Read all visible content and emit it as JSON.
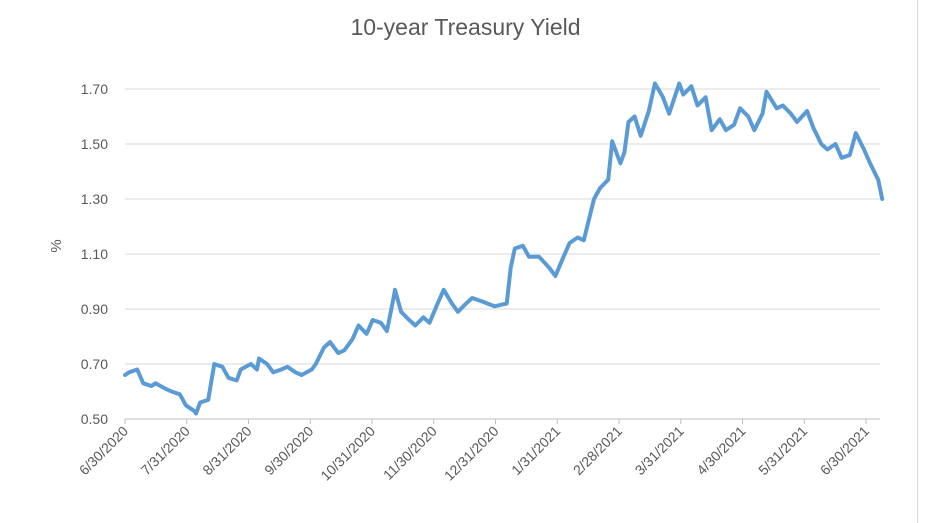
{
  "chart_data": {
    "type": "line",
    "title": "10-year Treasury Yield",
    "xlabel": "",
    "ylabel": "%",
    "ylim": [
      0.5,
      1.7
    ],
    "yticks": [
      "0.50",
      "0.70",
      "0.90",
      "1.10",
      "1.30",
      "1.50",
      "1.70"
    ],
    "xticks": [
      "6/30/2020",
      "7/31/2020",
      "8/31/2020",
      "9/30/2020",
      "10/31/2020",
      "11/30/2020",
      "12/31/2020",
      "1/31/2021",
      "2/28/2021",
      "3/31/2021",
      "4/30/2021",
      "5/31/2021",
      "6/30/2021"
    ],
    "grid": "horizontal",
    "legend": "none",
    "series_color": "#5b9bd5",
    "series": [
      {
        "x": [
          "2020-06-30",
          "2020-07-02",
          "2020-07-06",
          "2020-07-09",
          "2020-07-13",
          "2020-07-15",
          "2020-07-20",
          "2020-07-23",
          "2020-07-27",
          "2020-07-30",
          "2020-08-03",
          "2020-08-04",
          "2020-08-06",
          "2020-08-10",
          "2020-08-13",
          "2020-08-17",
          "2020-08-20",
          "2020-08-24",
          "2020-08-26",
          "2020-08-31",
          "2020-09-03",
          "2020-09-04",
          "2020-09-08",
          "2020-09-11",
          "2020-09-15",
          "2020-09-18",
          "2020-09-22",
          "2020-09-25",
          "2020-09-30",
          "2020-10-02",
          "2020-10-06",
          "2020-10-09",
          "2020-10-13",
          "2020-10-16",
          "2020-10-20",
          "2020-10-23",
          "2020-10-27",
          "2020-10-30",
          "2020-11-03",
          "2020-11-06",
          "2020-11-09",
          "2020-11-10",
          "2020-11-13",
          "2020-11-17",
          "2020-11-20",
          "2020-11-24",
          "2020-11-27",
          "2020-12-01",
          "2020-12-04",
          "2020-12-08",
          "2020-12-11",
          "2020-12-15",
          "2020-12-18",
          "2020-12-22",
          "2020-12-29",
          "2021-01-04",
          "2021-01-06",
          "2021-01-08",
          "2021-01-12",
          "2021-01-15",
          "2021-01-20",
          "2021-01-25",
          "2021-01-28",
          "2021-02-01",
          "2021-02-04",
          "2021-02-08",
          "2021-02-11",
          "2021-02-16",
          "2021-02-19",
          "2021-02-23",
          "2021-02-25",
          "2021-03-01",
          "2021-03-03",
          "2021-03-05",
          "2021-03-08",
          "2021-03-11",
          "2021-03-15",
          "2021-03-18",
          "2021-03-22",
          "2021-03-25",
          "2021-03-30",
          "2021-04-01",
          "2021-04-05",
          "2021-04-08",
          "2021-04-12",
          "2021-04-15",
          "2021-04-19",
          "2021-04-22",
          "2021-04-26",
          "2021-04-29",
          "2021-05-03",
          "2021-05-06",
          "2021-05-10",
          "2021-05-12",
          "2021-05-17",
          "2021-05-20",
          "2021-05-24",
          "2021-05-27",
          "2021-06-01",
          "2021-06-04",
          "2021-06-08",
          "2021-06-11",
          "2021-06-15",
          "2021-06-18",
          "2021-06-22",
          "2021-06-25",
          "2021-06-29",
          "2021-07-02",
          "2021-07-06",
          "2021-07-08"
        ],
        "y": [
          0.66,
          0.67,
          0.68,
          0.63,
          0.62,
          0.63,
          0.61,
          0.6,
          0.59,
          0.55,
          0.53,
          0.52,
          0.56,
          0.57,
          0.7,
          0.69,
          0.65,
          0.64,
          0.68,
          0.7,
          0.68,
          0.72,
          0.7,
          0.67,
          0.68,
          0.69,
          0.67,
          0.66,
          0.68,
          0.7,
          0.76,
          0.78,
          0.74,
          0.75,
          0.79,
          0.84,
          0.81,
          0.86,
          0.85,
          0.82,
          0.93,
          0.97,
          0.89,
          0.86,
          0.84,
          0.87,
          0.85,
          0.92,
          0.97,
          0.92,
          0.89,
          0.92,
          0.94,
          0.93,
          0.91,
          0.92,
          1.05,
          1.12,
          1.13,
          1.09,
          1.09,
          1.05,
          1.02,
          1.09,
          1.14,
          1.16,
          1.15,
          1.3,
          1.34,
          1.37,
          1.51,
          1.43,
          1.47,
          1.58,
          1.6,
          1.53,
          1.62,
          1.72,
          1.67,
          1.61,
          1.72,
          1.68,
          1.71,
          1.64,
          1.67,
          1.55,
          1.59,
          1.55,
          1.57,
          1.63,
          1.6,
          1.55,
          1.61,
          1.69,
          1.63,
          1.64,
          1.61,
          1.58,
          1.62,
          1.56,
          1.5,
          1.48,
          1.5,
          1.45,
          1.46,
          1.54,
          1.48,
          1.43,
          1.37,
          1.3
        ]
      }
    ]
  }
}
